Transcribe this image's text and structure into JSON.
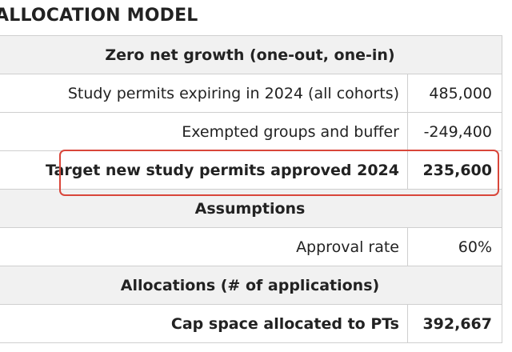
{
  "heading": "ALLOCATION MODEL",
  "highlight_color": "#d9463a",
  "table": {
    "section_zero": "Zero net growth (one-out, one-in)",
    "row_expiring": {
      "label": "Study permits expiring in 2024 (all cohorts)",
      "value": "485,000"
    },
    "row_exempted": {
      "label": "Exempted groups and buffer",
      "value": "-249,400"
    },
    "row_target": {
      "label": "Target new study permits approved 2024",
      "value": "235,600"
    },
    "section_assumptions": "Assumptions",
    "row_approval": {
      "label": "Approval rate",
      "value": "60%"
    },
    "section_allocations": "Allocations (# of applications)",
    "row_cap": {
      "label": "Cap space allocated to PTs",
      "value": "392,667"
    }
  }
}
